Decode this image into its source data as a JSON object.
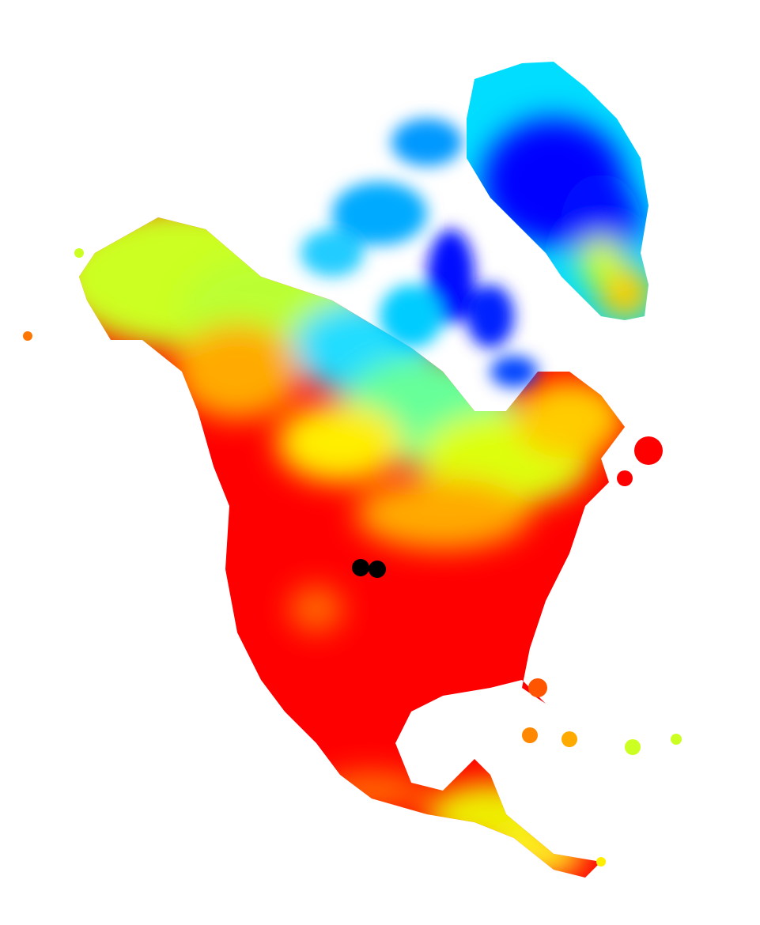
{
  "map": {
    "region": "",
    "background_color": "#ffffff",
    "color_scale": {
      "colors": [
        "#0000ff",
        "#0088ff",
        "#00ddff",
        "#66ff88",
        "#ddff00",
        "#ffcc00",
        "#ff7700",
        "#ff0000"
      ],
      "legend_visible": false
    },
    "markers": {
      "color": "#000000",
      "count": 2
    }
  }
}
